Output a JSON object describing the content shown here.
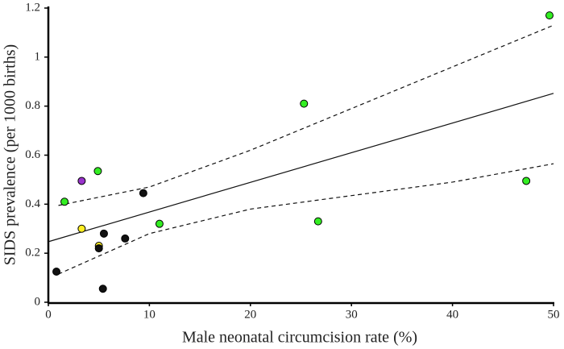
{
  "chart_data": {
    "type": "scatter",
    "xlabel": "Male neonatal circumcision rate (%)",
    "ylabel": "SIDS prevalence (per 1000 births)",
    "xlim": [
      0,
      50
    ],
    "xticks": [
      0,
      10,
      20,
      30,
      40,
      50
    ],
    "ylim": [
      0,
      1.2
    ],
    "yticks": [
      0,
      0.2,
      0.4,
      0.6,
      0.8,
      1,
      1.2
    ],
    "series": [
      {
        "color": "#33ee22",
        "x": [
          1.6,
          4.9,
          11.0,
          25.3,
          26.7,
          47.3,
          49.6
        ],
        "values": [
          0.41,
          0.535,
          0.32,
          0.81,
          0.33,
          0.495,
          1.17
        ]
      },
      {
        "color": "#9933cc",
        "x": [
          3.3
        ],
        "values": [
          0.495
        ]
      },
      {
        "color": "#ffee22",
        "x": [
          3.3,
          5.0
        ],
        "values": [
          0.3,
          0.23
        ]
      },
      {
        "color": "#111111",
        "x": [
          0.8,
          5.0,
          5.5,
          5.4,
          7.6,
          9.4
        ],
        "values": [
          0.125,
          0.22,
          0.28,
          0.055,
          0.26,
          0.445
        ]
      }
    ],
    "lines": [
      {
        "style": "solid",
        "x": [
          0,
          50
        ],
        "values": [
          0.247,
          0.852
        ]
      },
      {
        "style": "dashed",
        "x": [
          1,
          10,
          20,
          30,
          40,
          50
        ],
        "values": [
          0.395,
          0.47,
          0.62,
          0.79,
          0.96,
          1.13
        ]
      },
      {
        "style": "dashed",
        "x": [
          1,
          10,
          20,
          30,
          40,
          50
        ],
        "values": [
          0.115,
          0.28,
          0.38,
          0.435,
          0.49,
          0.565
        ]
      }
    ]
  }
}
